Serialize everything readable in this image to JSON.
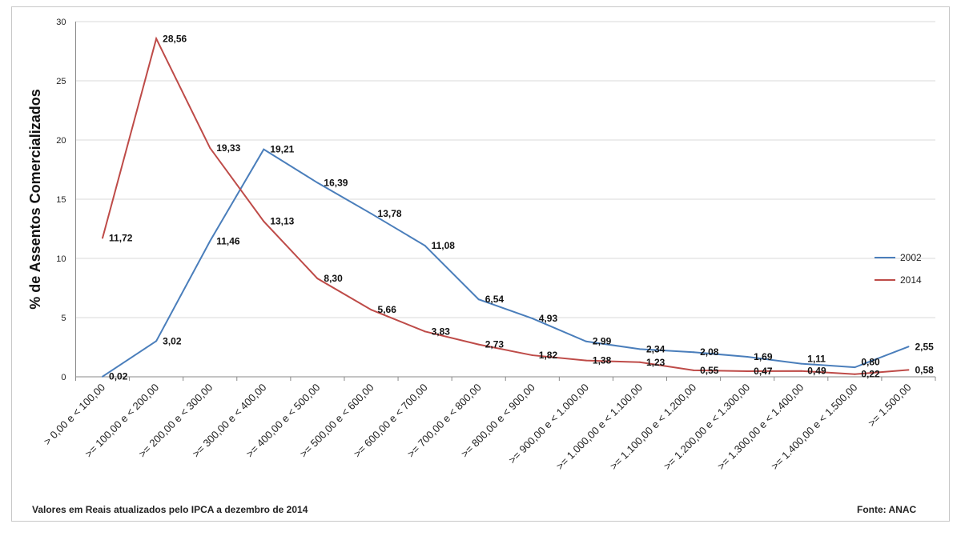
{
  "chart_data": {
    "type": "line",
    "ylabel": "% de Assentos Comercializados",
    "xlabel": "",
    "ylim": [
      0,
      30
    ],
    "yticks": [
      0,
      5,
      10,
      15,
      20,
      25,
      30
    ],
    "grid": true,
    "legend_placement": "right",
    "categories": [
      "> 0,00 e < 100,00",
      ">= 100,00 e < 200,00",
      ">= 200,00 e < 300,00",
      ">= 300,00 e < 400,00",
      ">= 400,00 e < 500,00",
      ">= 500,00 e < 600,00",
      ">= 600,00 e < 700,00",
      ">= 700,00 e < 800,00",
      ">= 800,00 e < 900,00",
      ">= 900,00 e < 1.000,00",
      ">= 1.000,00 e < 1.100,00",
      ">= 1.100,00 e < 1.200,00",
      ">= 1.200,00 e < 1.300,00",
      ">= 1.300,00 e < 1.400,00",
      ">= 1.400,00 e < 1.500,00",
      ">= 1.500,00"
    ],
    "series": [
      {
        "name": "2002",
        "color": "#4a7ebb",
        "values": [
          0.02,
          3.02,
          11.46,
          19.21,
          16.39,
          13.78,
          11.08,
          6.54,
          4.93,
          2.99,
          2.34,
          2.08,
          1.69,
          1.11,
          0.8,
          2.55
        ],
        "labels": [
          "0,02",
          "3,02",
          "11,46",
          "19,21",
          "16,39",
          "13,78",
          "11,08",
          "6,54",
          "4,93",
          "2,99",
          "2,34",
          "2,08",
          "1,69",
          "1,11",
          "0,80",
          "2,55"
        ]
      },
      {
        "name": "2014",
        "color": "#be4b48",
        "values": [
          11.72,
          28.56,
          19.33,
          13.13,
          8.3,
          5.66,
          3.83,
          2.73,
          1.82,
          1.38,
          1.23,
          0.55,
          0.47,
          0.49,
          0.22,
          0.58
        ],
        "labels": [
          "11,72",
          "28,56",
          "19,33",
          "13,13",
          "8,30",
          "5,66",
          "3,83",
          "2,73",
          "1,82",
          "1,38",
          "1,23",
          "0,55",
          "0,47",
          "0,49",
          "0,22",
          "0,58"
        ]
      }
    ]
  },
  "footer": {
    "note": "Valores em Reais atualizados pelo IPCA  a dezembro de 2014",
    "source": "Fonte: ANAC"
  }
}
